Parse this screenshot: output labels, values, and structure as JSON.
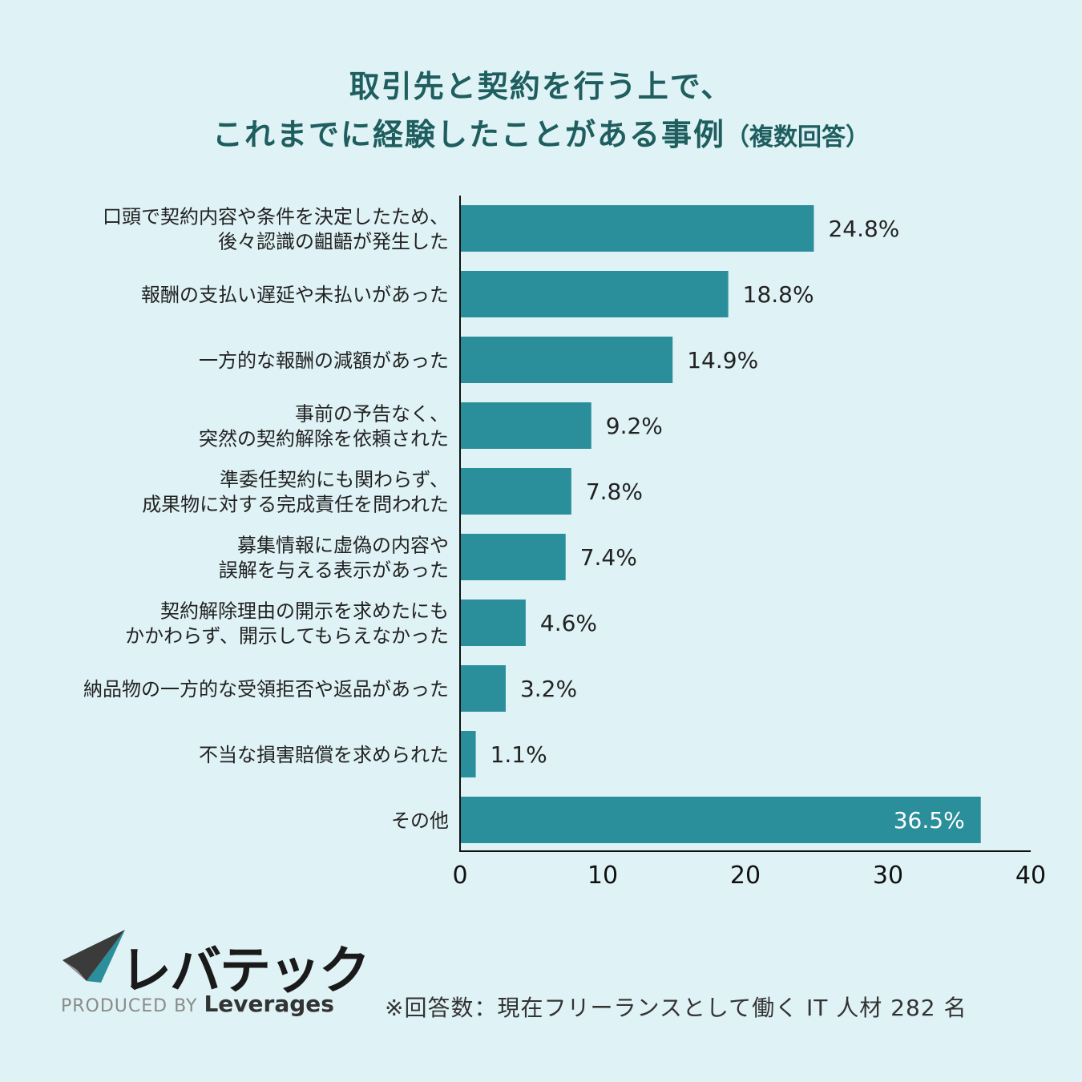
{
  "title": {
    "line1": "取引先と契約を行う上で、",
    "line2": "これまでに経験したことがある事例",
    "line2_sub": "（複数回答）"
  },
  "chart_data": {
    "type": "bar",
    "orientation": "horizontal",
    "categories": [
      [
        "口頭で契約内容や条件を決定したため、",
        "後々認識の齟齬が発生した"
      ],
      [
        "報酬の支払い遅延や未払いがあった"
      ],
      [
        "一方的な報酬の減額があった"
      ],
      [
        "事前の予告なく、",
        "突然の契約解除を依頼された"
      ],
      [
        "準委任契約にも関わらず、",
        "成果物に対する完成責任を問われた"
      ],
      [
        "募集情報に虚偽の内容や",
        "誤解を与える表示があった"
      ],
      [
        "契約解除理由の開示を求めたにも",
        "かかわらず、開示してもらえなかった"
      ],
      [
        "納品物の一方的な受領拒否や返品があった"
      ],
      [
        "不当な損害賠償を求められた"
      ],
      [
        "その他"
      ]
    ],
    "values": [
      24.8,
      18.8,
      14.9,
      9.2,
      7.8,
      7.4,
      4.6,
      3.2,
      1.1,
      36.5
    ],
    "value_labels": [
      "24.8%",
      "18.8%",
      "14.9%",
      "9.2%",
      "7.8%",
      "7.4%",
      "4.6%",
      "3.2%",
      "1.1%",
      "36.5%"
    ],
    "xlim": [
      0,
      40
    ],
    "xticks": [
      "0",
      "10",
      "20",
      "30",
      "40"
    ],
    "xlabel": "",
    "ylabel": "",
    "bar_color": "#2a8f9b"
  },
  "logo": {
    "name": "レバテック",
    "produced_by": "PRODUCED BY",
    "company": "Leverages"
  },
  "footnote": "※回答数：現在フリーランスとして働く IT 人材 282 名"
}
